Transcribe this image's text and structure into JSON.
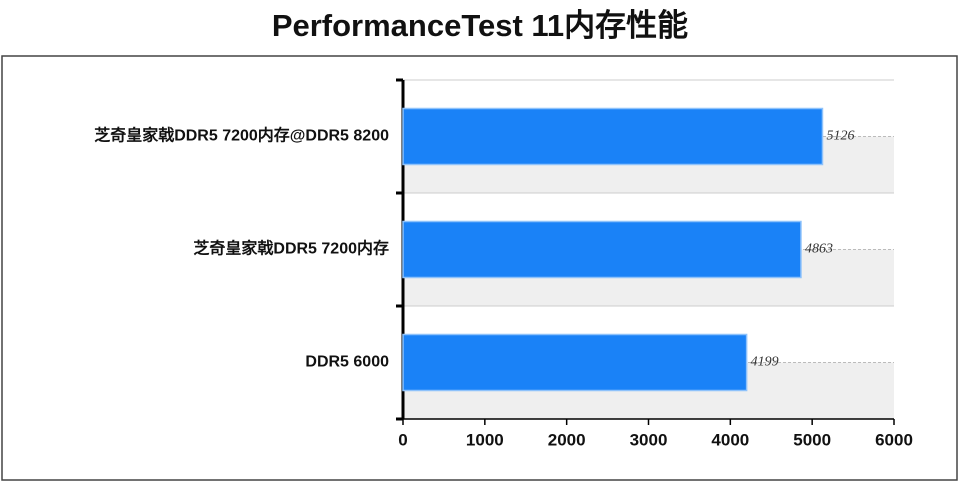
{
  "chart_data": {
    "type": "bar",
    "orientation": "horizontal",
    "title": "PerformanceTest 11内存性能",
    "categories": [
      "芝奇皇家戟DDR5 7200内存@DDR5 8200",
      "芝奇皇家戟DDR5 7200内存",
      "DDR5 6000"
    ],
    "values": [
      5126,
      4863,
      4199
    ],
    "color": "#1a82f7",
    "xlim": [
      0,
      6000
    ],
    "xticks": [
      0,
      1000,
      2000,
      3000,
      4000,
      5000,
      6000
    ]
  }
}
